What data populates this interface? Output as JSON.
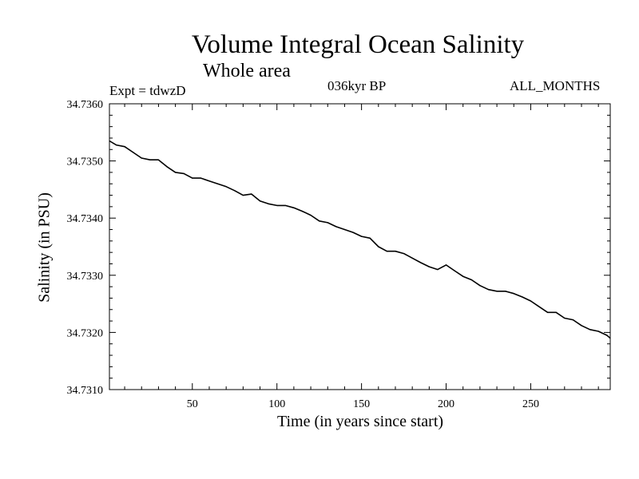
{
  "header": {
    "title": "Volume Integral Ocean Salinity",
    "subtitle": "Whole area",
    "experiment": "Expt = tdwzD",
    "period": "036kyr BP",
    "months": "ALL_MONTHS"
  },
  "chart_data": {
    "type": "line",
    "title": "Volume Integral Ocean Salinity",
    "subtitle": "Whole area",
    "xlabel": "Time (in years since start)",
    "ylabel": "Salinity (in PSU)",
    "xlim": [
      1,
      297
    ],
    "ylim": [
      34.731,
      34.736
    ],
    "xticks": [
      50,
      100,
      150,
      200,
      250
    ],
    "yticks": [
      "34.7310",
      "34.7320",
      "34.7330",
      "34.7340",
      "34.7350",
      "34.7360"
    ],
    "grid": false,
    "series": [
      {
        "color": "#000000",
        "x": [
          1,
          5,
          10,
          15,
          20,
          25,
          30,
          35,
          40,
          45,
          50,
          55,
          60,
          65,
          70,
          75,
          80,
          85,
          90,
          95,
          100,
          105,
          110,
          115,
          120,
          125,
          130,
          135,
          140,
          145,
          150,
          155,
          160,
          165,
          170,
          175,
          180,
          185,
          190,
          195,
          200,
          205,
          210,
          215,
          220,
          225,
          230,
          235,
          240,
          245,
          250,
          255,
          260,
          265,
          270,
          275,
          280,
          285,
          290,
          295,
          297
        ],
        "y": [
          34.73535,
          34.73528,
          34.73525,
          34.73515,
          34.73505,
          34.73502,
          34.73502,
          34.7349,
          34.7348,
          34.73478,
          34.7347,
          34.7347,
          34.73465,
          34.7346,
          34.73455,
          34.73448,
          34.7344,
          34.73442,
          34.7343,
          34.73425,
          34.73422,
          34.73422,
          34.73418,
          34.73412,
          34.73405,
          34.73395,
          34.73392,
          34.73385,
          34.7338,
          34.73375,
          34.73368,
          34.73365,
          34.7335,
          34.73342,
          34.73342,
          34.73338,
          34.7333,
          34.73322,
          34.73315,
          34.7331,
          34.73318,
          34.73308,
          34.73298,
          34.73292,
          34.73282,
          34.73275,
          34.73272,
          34.73272,
          34.73268,
          34.73262,
          34.73255,
          34.73245,
          34.73235,
          34.73235,
          34.73225,
          34.73222,
          34.73212,
          34.73205,
          34.73202,
          34.73195,
          34.7319
        ]
      }
    ]
  }
}
